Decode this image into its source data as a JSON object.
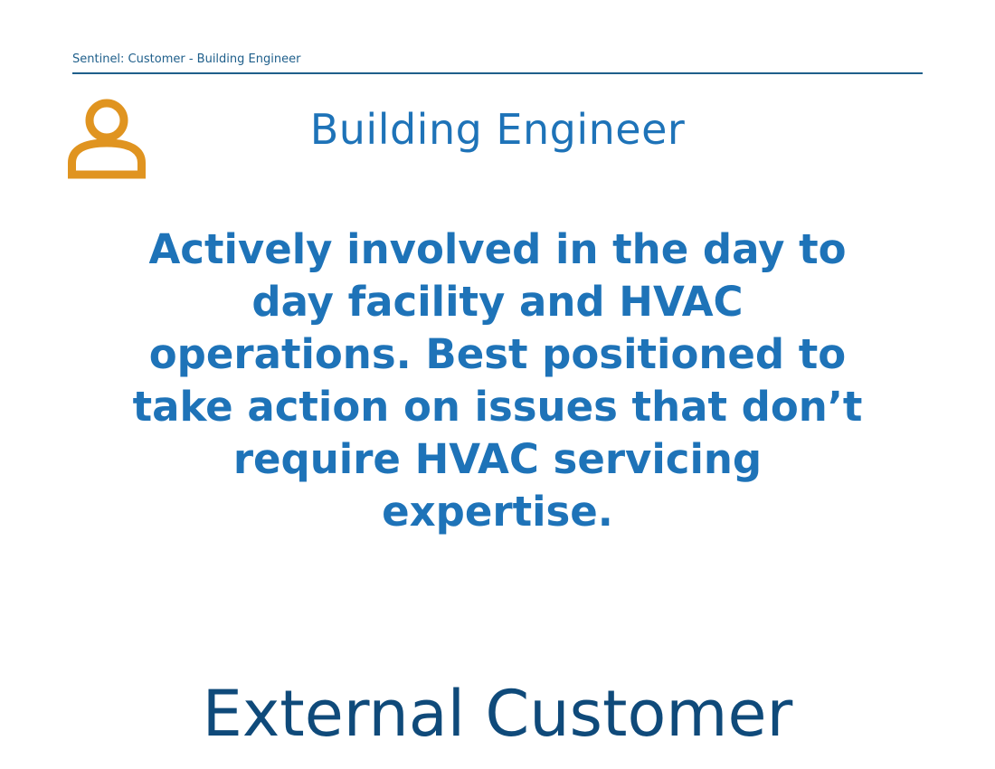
{
  "header": {
    "breadcrumb": "Sentinel: Customer - Building Engineer"
  },
  "persona": {
    "icon": "user-icon",
    "icon_color": "#E09420",
    "title": "Building Engineer",
    "description": "Actively involved in the day to day facility and HVAC operations. Best positioned to take action on issues that don’t require HVAC servicing expertise."
  },
  "footer": {
    "category": "External Customer"
  },
  "colors": {
    "accent": "#1E73B8",
    "dark_blue": "#0F4A7A",
    "rule": "#1F5F8B"
  }
}
